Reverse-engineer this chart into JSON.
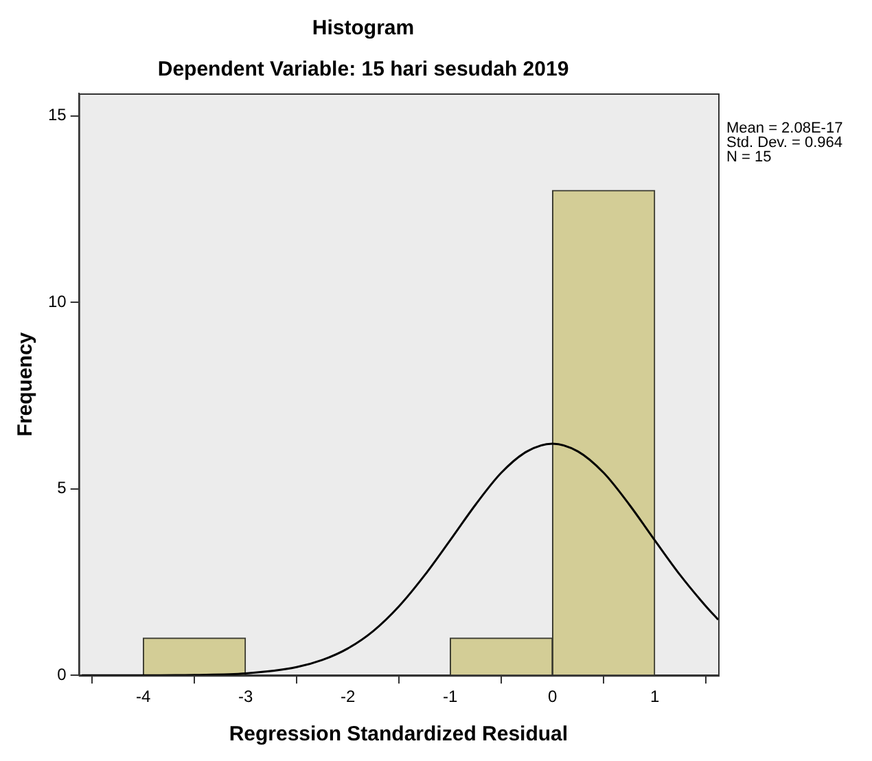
{
  "chart_data": {
    "type": "histogram",
    "title": "Histogram",
    "subtitle": "Dependent Variable: 15 hari sesudah 2019",
    "xlabel": "Regression Standardized Residual",
    "ylabel": "Frequency",
    "bins": [
      -4,
      -3,
      -2,
      -1,
      0,
      1
    ],
    "values": [
      1,
      0,
      0,
      1,
      13
    ],
    "color": "#d3cd96",
    "series": [
      {
        "type": "line",
        "color": "#000000",
        "x": [
          -4.6,
          -4,
          -3.5,
          -3,
          -2.5,
          -2.25,
          -2,
          -1.75,
          -1.5,
          -1.25,
          -1,
          -0.75,
          -0.5,
          -0.25,
          0,
          0.25,
          0.5,
          0.75,
          1,
          1.25,
          1.5,
          1.62
        ],
        "values": [
          0,
          0,
          0.01,
          0.05,
          0.22,
          0.41,
          0.72,
          1.19,
          1.85,
          2.68,
          3.62,
          4.58,
          5.43,
          6.0,
          6.21,
          6.0,
          5.43,
          4.58,
          3.62,
          2.68,
          1.85,
          1.49
        ]
      }
    ],
    "xlim": [
      -4.63,
      1.62
    ],
    "xticks": [
      -4,
      -3,
      -2,
      -1,
      0,
      1
    ],
    "ylim": [
      0,
      15.6
    ],
    "yticks": [
      0,
      5,
      10,
      15
    ],
    "grid": false,
    "legend": false,
    "annotations": [
      "Mean = 2.08E-17",
      "Std. Dev. = 0.964",
      "N = 15"
    ]
  }
}
